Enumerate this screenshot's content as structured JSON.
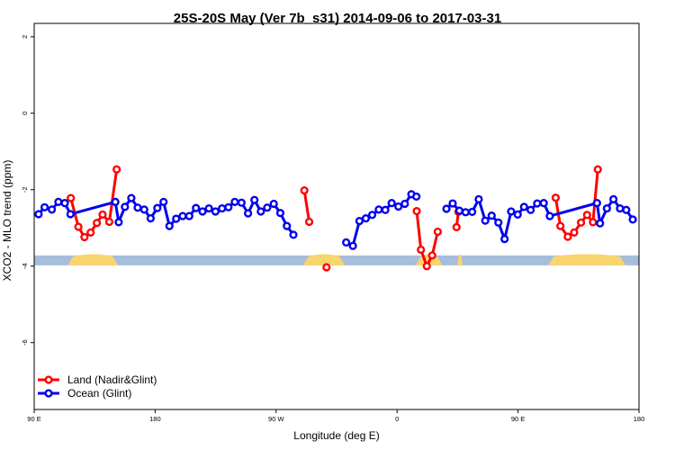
{
  "chart_data": {
    "type": "line",
    "title": "25S-20S May (Ver 7b_s31)   2014-09-06 to 2017-03-31",
    "xlabel": "Longitude (deg E)",
    "ylabel": "XCO2 - MLO trend (ppm)",
    "xlim": [
      0,
      360
    ],
    "ylim": [
      -7.75,
      2.35
    ],
    "xticks": [
      {
        "value": 0,
        "label": "90 E"
      },
      {
        "value": 72,
        "label": "180"
      },
      {
        "value": 144,
        "label": "90 W"
      },
      {
        "value": 216,
        "label": "0"
      },
      {
        "value": 288,
        "label": "90 E"
      },
      {
        "value": 360,
        "label": "180"
      }
    ],
    "yticks": [
      {
        "value": 2,
        "label": "2"
      },
      {
        "value": 0,
        "label": "0"
      },
      {
        "value": -2,
        "label": "-2"
      },
      {
        "value": -4,
        "label": "-4"
      },
      {
        "value": -6,
        "label": "-6"
      }
    ],
    "land_band": {
      "y_range": [
        -3.98,
        -3.72
      ],
      "ocean_color": "#a6bddb",
      "land_color": "#f9d56e",
      "land_segments": [
        [
          20,
          50
        ],
        [
          160,
          185
        ],
        [
          227,
          243
        ],
        [
          252,
          255
        ],
        [
          306,
          352
        ]
      ]
    },
    "series": [
      {
        "name": "Land (Nadir&Glint)",
        "color": "#ff0000",
        "segments": [
          [
            [
              21.8,
              -2.22
            ],
            [
              26.3,
              -2.97
            ],
            [
              29.9,
              -3.24
            ],
            [
              33.6,
              -3.12
            ],
            [
              37.3,
              -2.87
            ],
            [
              40.7,
              -2.65
            ],
            [
              44.7,
              -2.84
            ],
            [
              49.1,
              -1.47
            ]
          ],
          [
            [
              160.8,
              -2.02
            ],
            [
              163.7,
              -2.84
            ]
          ],
          [
            [
              174.0,
              -4.03
            ]
          ],
          [
            [
              227.7,
              -2.56
            ],
            [
              230.2,
              -3.57
            ],
            [
              233.7,
              -4.0
            ],
            [
              236.9,
              -3.72
            ],
            [
              240.2,
              -3.1
            ]
          ],
          [
            [
              251.4,
              -2.98
            ],
            [
              252.5,
              -2.58
            ]
          ],
          [
            [
              310.4,
              -2.21
            ],
            [
              313.2,
              -2.95
            ],
            [
              317.6,
              -3.23
            ],
            [
              321.4,
              -3.12
            ],
            [
              325.5,
              -2.86
            ],
            [
              329.1,
              -2.66
            ],
            [
              332.6,
              -2.85
            ],
            [
              335.5,
              -1.47
            ]
          ]
        ]
      },
      {
        "name": "Ocean (Glint)",
        "color": "#0000ee",
        "segments": [
          [
            [
              2.6,
              -2.64
            ],
            [
              6.2,
              -2.46
            ],
            [
              10.5,
              -2.52
            ],
            [
              14.4,
              -2.32
            ],
            [
              18.2,
              -2.35
            ],
            [
              21.6,
              -2.64
            ],
            [
              48.3,
              -2.32
            ],
            [
              50.3,
              -2.85
            ],
            [
              54.0,
              -2.45
            ],
            [
              57.8,
              -2.22
            ],
            [
              61.6,
              -2.47
            ],
            [
              65.5,
              -2.52
            ],
            [
              69.3,
              -2.75
            ],
            [
              73.3,
              -2.48
            ],
            [
              77.0,
              -2.32
            ],
            [
              80.5,
              -2.95
            ],
            [
              84.5,
              -2.76
            ],
            [
              88.4,
              -2.69
            ],
            [
              92.3,
              -2.69
            ],
            [
              96.3,
              -2.48
            ],
            [
              100.2,
              -2.57
            ],
            [
              104.0,
              -2.49
            ],
            [
              107.9,
              -2.57
            ],
            [
              111.8,
              -2.49
            ],
            [
              115.6,
              -2.46
            ],
            [
              119.4,
              -2.32
            ],
            [
              123.4,
              -2.34
            ],
            [
              127.3,
              -2.62
            ],
            [
              131.1,
              -2.27
            ],
            [
              134.9,
              -2.57
            ],
            [
              138.7,
              -2.47
            ],
            [
              142.6,
              -2.37
            ],
            [
              146.5,
              -2.61
            ],
            [
              150.4,
              -2.95
            ],
            [
              154.3,
              -3.18
            ]
          ],
          [
            [
              185.7,
              -3.38
            ],
            [
              189.7,
              -3.47
            ],
            [
              193.6,
              -2.82
            ],
            [
              197.4,
              -2.75
            ],
            [
              201.2,
              -2.66
            ],
            [
              205.1,
              -2.52
            ],
            [
              209.0,
              -2.53
            ],
            [
              212.8,
              -2.35
            ],
            [
              216.8,
              -2.44
            ],
            [
              220.6,
              -2.37
            ],
            [
              224.5,
              -2.12
            ],
            [
              227.5,
              -2.18
            ]
          ],
          [
            [
              245.4,
              -2.5
            ],
            [
              249.1,
              -2.36
            ],
            [
              253.1,
              -2.55
            ],
            [
              256.8,
              -2.59
            ],
            [
              260.7,
              -2.58
            ],
            [
              264.6,
              -2.25
            ],
            [
              268.5,
              -2.81
            ],
            [
              272.3,
              -2.68
            ],
            [
              276.3,
              -2.86
            ],
            [
              280.0,
              -3.29
            ],
            [
              283.9,
              -2.57
            ],
            [
              287.8,
              -2.65
            ],
            [
              291.6,
              -2.45
            ],
            [
              295.5,
              -2.53
            ],
            [
              299.4,
              -2.36
            ],
            [
              303.3,
              -2.35
            ],
            [
              306.9,
              -2.69
            ],
            [
              335.0,
              -2.35
            ],
            [
              336.8,
              -2.88
            ],
            [
              340.9,
              -2.49
            ],
            [
              344.8,
              -2.25
            ],
            [
              348.7,
              -2.49
            ],
            [
              352.4,
              -2.53
            ],
            [
              356.3,
              -2.78
            ]
          ]
        ]
      }
    ],
    "legend": {
      "placement": "bottom-left"
    },
    "grid": false
  }
}
